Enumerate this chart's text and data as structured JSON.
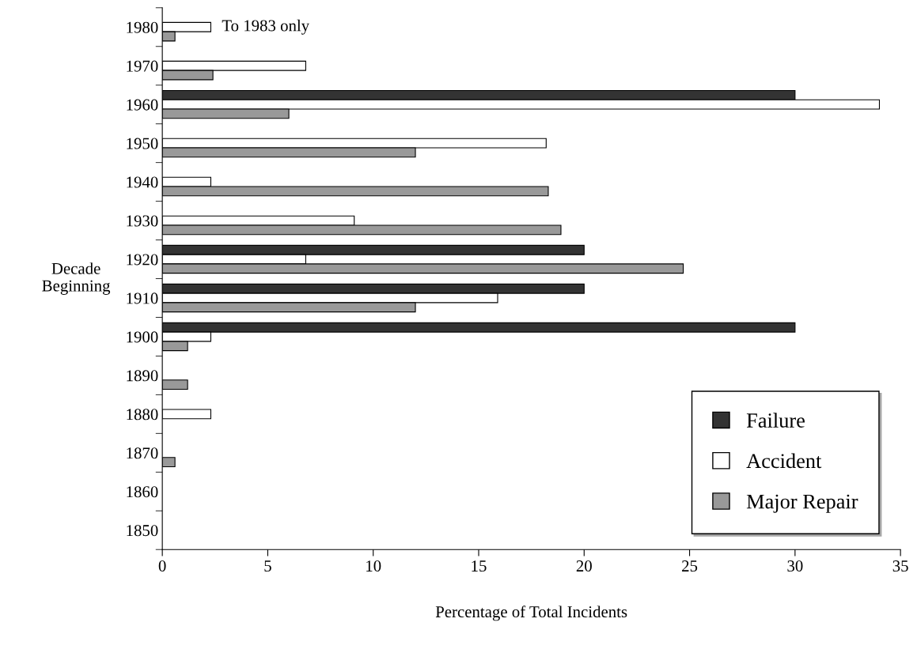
{
  "chart_data": {
    "type": "bar",
    "orientation": "horizontal",
    "xlabel": "Percentage of Total Incidents",
    "ylabel": "Decade\nBeginning",
    "categories": [
      "1980",
      "1970",
      "1960",
      "1950",
      "1940",
      "1930",
      "1920",
      "1910",
      "1900",
      "1890",
      "1880",
      "1870",
      "1860",
      "1850"
    ],
    "series": [
      {
        "name": "Failure",
        "color": "#333333",
        "values": [
          null,
          null,
          30,
          null,
          null,
          null,
          20,
          20,
          30,
          null,
          null,
          null,
          null,
          null
        ]
      },
      {
        "name": "Accident",
        "color": "#ffffff",
        "values": [
          2.3,
          6.8,
          34,
          18.2,
          2.3,
          9.1,
          6.8,
          15.9,
          2.3,
          null,
          2.3,
          null,
          null,
          null
        ]
      },
      {
        "name": "Major Repair",
        "color": "#999999",
        "values": [
          0.6,
          2.4,
          6,
          12,
          18.3,
          18.9,
          24.7,
          12,
          1.2,
          1.2,
          null,
          0.6,
          null,
          null
        ]
      }
    ],
    "xlim": [
      0,
      35
    ],
    "xticks": [
      0,
      5,
      10,
      15,
      20,
      25,
      30,
      35
    ],
    "grid": false,
    "legend": "bottom right",
    "annotations": [
      {
        "text": "To 1983 only",
        "x": 2.3,
        "y": "1980"
      }
    ]
  }
}
